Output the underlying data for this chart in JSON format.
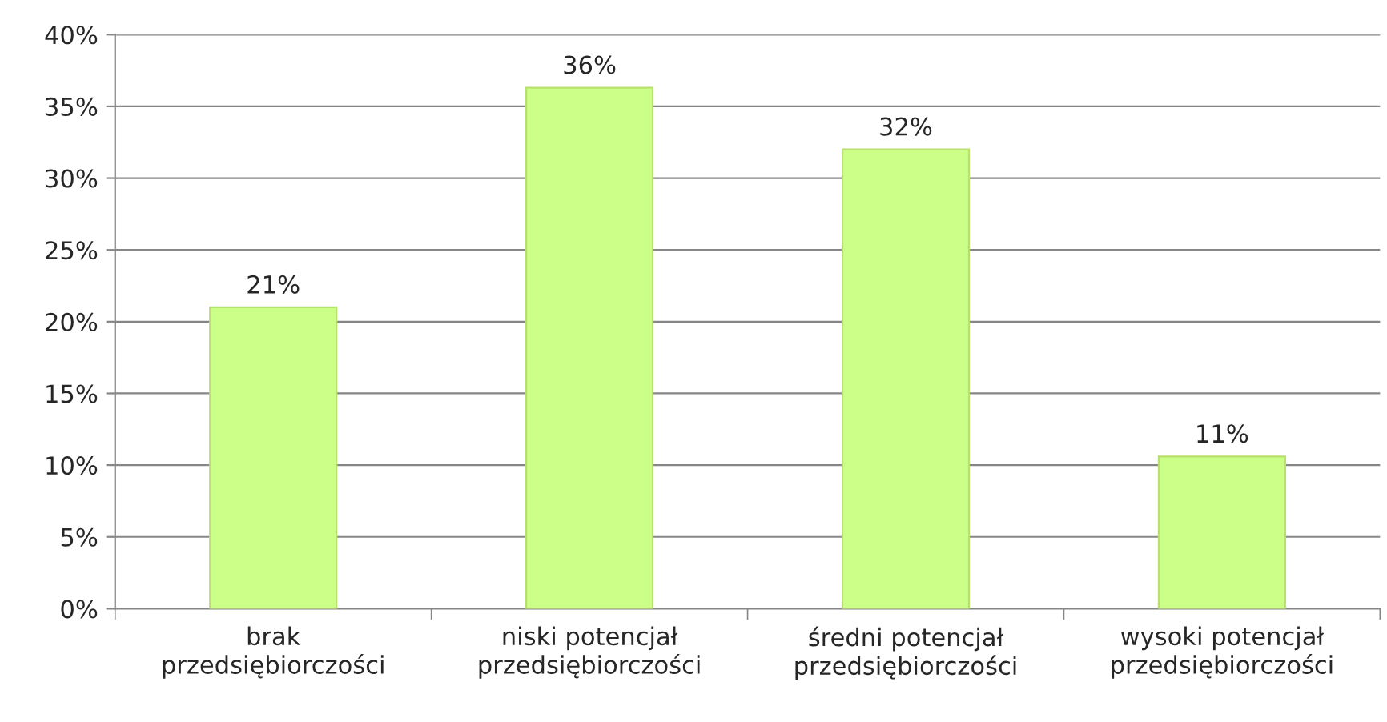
{
  "chart_data": {
    "type": "bar",
    "categories": [
      "brak\nprzedsiębiorczości",
      "niski potencjał\nprzedsiębiorczości",
      "średni potencjał\nprzedsiębiorczości",
      "wysoki potencjał\nprzedsiębiorczości"
    ],
    "values": [
      21,
      36.3,
      32,
      10.6
    ],
    "value_labels": [
      "21%",
      "36%",
      "32%",
      "11%"
    ],
    "color": "#ccff88",
    "ylim": [
      0,
      40
    ],
    "yticks": [
      {
        "value": 0,
        "label": "0%"
      },
      {
        "value": 5,
        "label": "5%"
      },
      {
        "value": 10,
        "label": "10%"
      },
      {
        "value": 15,
        "label": "15%"
      },
      {
        "value": 20,
        "label": "20%"
      },
      {
        "value": 25,
        "label": "25%"
      },
      {
        "value": 30,
        "label": "30%"
      },
      {
        "value": 35,
        "label": "35%"
      },
      {
        "value": 40,
        "label": "40%"
      }
    ],
    "grid": "y",
    "legend": false
  }
}
